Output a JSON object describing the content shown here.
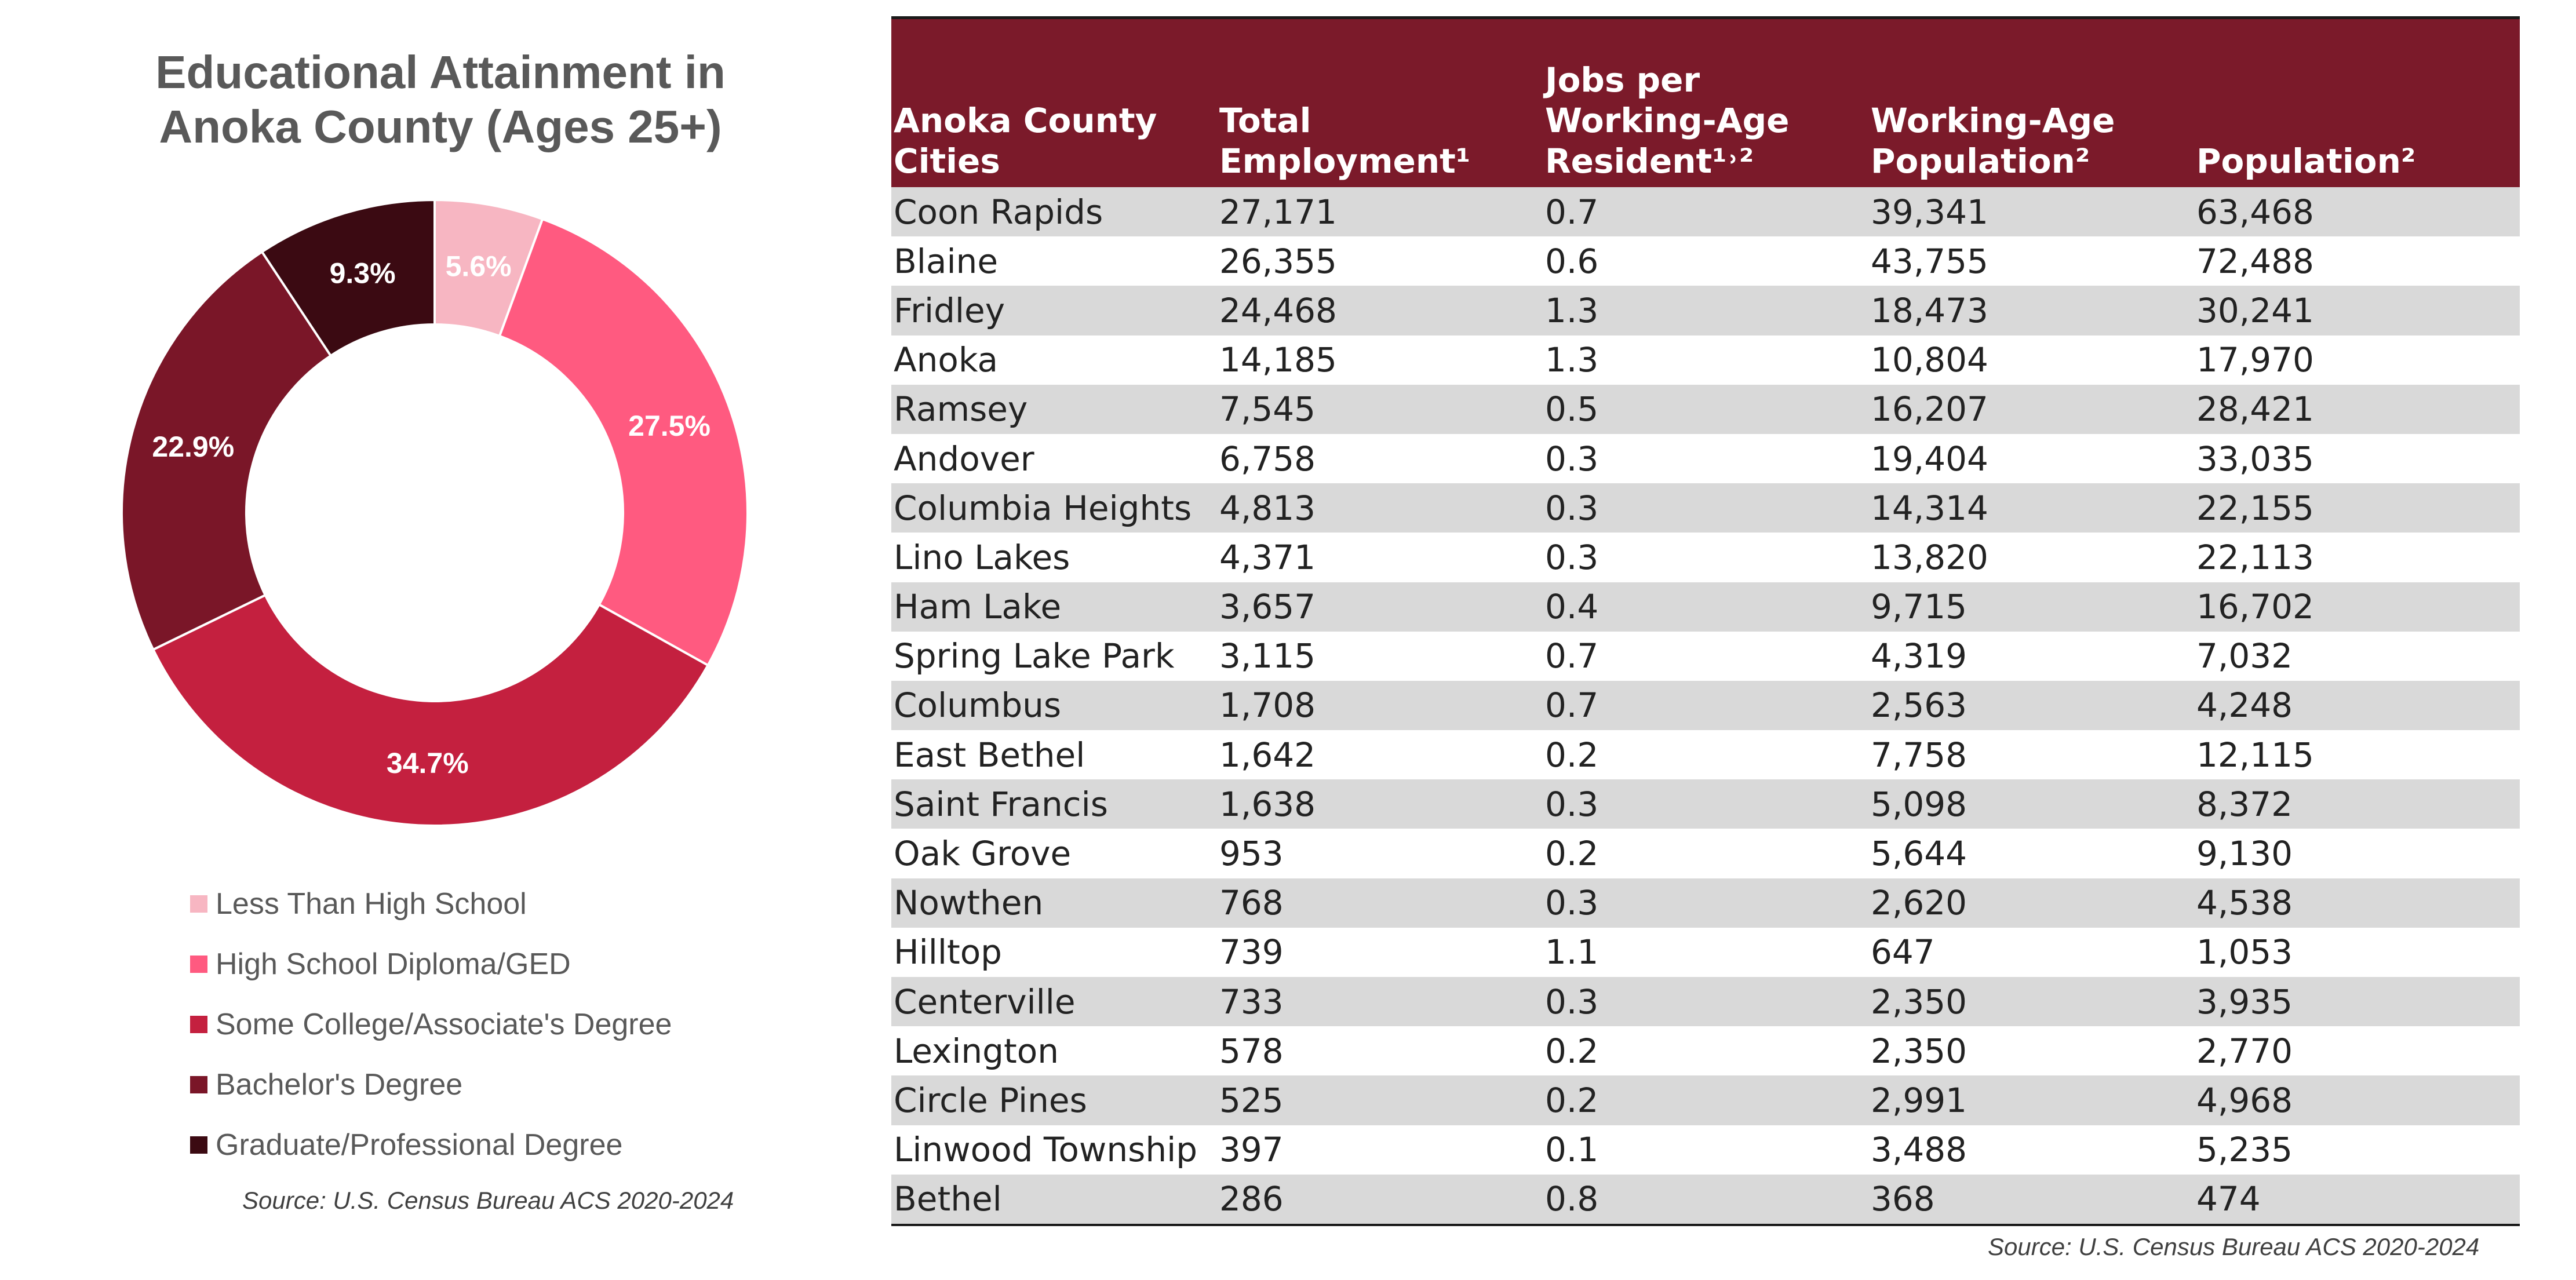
{
  "donut": {
    "title_line1": "Educational Attainment in",
    "title_line2": "Anoka County (Ages 25+)",
    "source": "Source: U.S. Census Bureau ACS 2020-2024"
  },
  "chart_data": [
    {
      "type": "pie",
      "title": "Educational Attainment in Anoka County (Ages 25+)",
      "donut": true,
      "categories": [
        "Less Than High School",
        "High School Diploma/GED",
        "Some College/Associate's Degree",
        "Bachelor's Degree",
        "Graduate/Professional Degree"
      ],
      "values": [
        5.6,
        27.5,
        34.7,
        22.9,
        9.3
      ],
      "labels": [
        "5.6%",
        "27.5%",
        "34.7%",
        "22.9%",
        "9.3%"
      ],
      "colors": [
        "#f7b6c2",
        "#ff5a80",
        "#c4203f",
        "#7a1628",
        "#3b0a12"
      ],
      "legend": "bottom"
    },
    {
      "type": "table",
      "columns": [
        "Anoka County Cities",
        "Total Employment¹",
        "Jobs per Working-Age Resident¹˒²",
        "Working-Age Population²",
        "Population²"
      ],
      "rows": [
        [
          "Coon Rapids",
          "27,171",
          "0.7",
          "39,341",
          "63,468"
        ],
        [
          "Blaine",
          "26,355",
          "0.6",
          "43,755",
          "72,488"
        ],
        [
          "Fridley",
          "24,468",
          "1.3",
          "18,473",
          "30,241"
        ],
        [
          "Anoka",
          "14,185",
          "1.3",
          "10,804",
          "17,970"
        ],
        [
          "Ramsey",
          "7,545",
          "0.5",
          "16,207",
          "28,421"
        ],
        [
          "Andover",
          "6,758",
          "0.3",
          "19,404",
          "33,035"
        ],
        [
          "Columbia Heights",
          "4,813",
          "0.3",
          "14,314",
          "22,155"
        ],
        [
          "Lino Lakes",
          "4,371",
          "0.3",
          "13,820",
          "22,113"
        ],
        [
          "Ham Lake",
          "3,657",
          "0.4",
          "9,715",
          "16,702"
        ],
        [
          "Spring Lake Park",
          "3,115",
          "0.7",
          "4,319",
          "7,032"
        ],
        [
          "Columbus",
          "1,708",
          "0.7",
          "2,563",
          "4,248"
        ],
        [
          "East Bethel",
          "1,642",
          "0.2",
          "7,758",
          "12,115"
        ],
        [
          "Saint Francis",
          "1,638",
          "0.3",
          "5,098",
          "8,372"
        ],
        [
          "Oak Grove",
          "953",
          "0.2",
          "5,644",
          "9,130"
        ],
        [
          "Nowthen",
          "768",
          "0.3",
          "2,620",
          "4,538"
        ],
        [
          "Hilltop",
          "739",
          "1.1",
          "647",
          "1,053"
        ],
        [
          "Centerville",
          "733",
          "0.3",
          "2,350",
          "3,935"
        ],
        [
          "Lexington",
          "578",
          "0.2",
          "2,350",
          "2,770"
        ],
        [
          "Circle Pines",
          "525",
          "0.2",
          "2,991",
          "4,968"
        ],
        [
          "Linwood Township",
          "397",
          "0.1",
          "3,488",
          "5,235"
        ],
        [
          "Bethel",
          "286",
          "0.8",
          "368",
          "474"
        ]
      ]
    }
  ],
  "table": {
    "header": {
      "col0": [
        "Anoka County",
        "Cities"
      ],
      "col1": [
        "Total",
        "Employment¹"
      ],
      "col2": [
        "Jobs per",
        "Working-Age",
        "Resident¹˒²"
      ],
      "col3": [
        "Working-Age",
        "Population²"
      ],
      "col4": [
        "Population²"
      ]
    },
    "source": "Source: U.S. Census Bureau ACS 2020-2024"
  }
}
